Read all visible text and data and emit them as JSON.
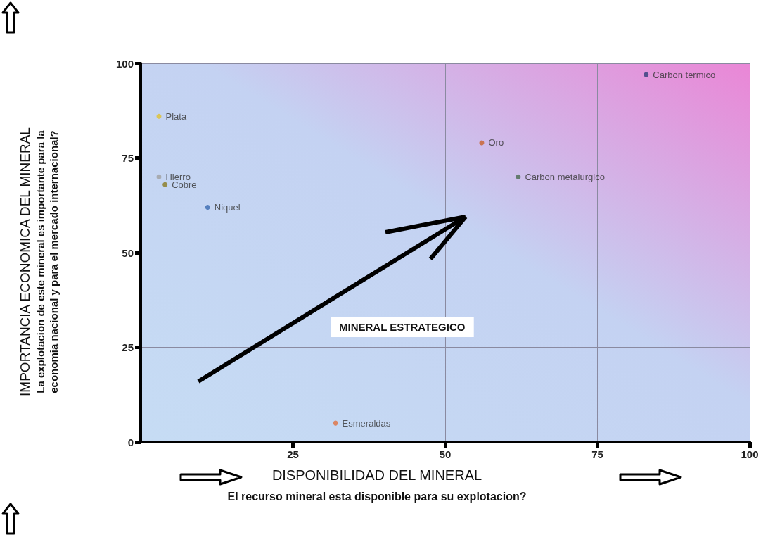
{
  "chart_data": {
    "type": "scatter",
    "xlabel": "DISPONIBILIDAD DEL MINERAL\nEl recurso mineral esta disponible para su explotacion?",
    "ylabel": "IMPORTANCIA ECONOMICA DEL MINERAL\nLa explotacion de este mineral es importante para la\neconomia nacional y para el mercado internacional?",
    "annotations": [
      "MINERAL ESTRATEGICO"
    ],
    "series": [
      {
        "name": "Carbon termico",
        "color": "#2f3f7a",
        "x": [
          83
        ],
        "values": [
          97
        ]
      },
      {
        "name": "Plata",
        "color": "#e0c030",
        "x": [
          3
        ],
        "values": [
          86
        ]
      },
      {
        "name": "Oro",
        "color": "#c8622a",
        "x": [
          56
        ],
        "values": [
          79
        ]
      },
      {
        "name": "Hierro",
        "color": "#a0a0a0",
        "x": [
          3
        ],
        "values": [
          70
        ]
      },
      {
        "name": "Cobre",
        "color": "#8a7a20",
        "x": [
          4
        ],
        "values": [
          68
        ]
      },
      {
        "name": "Carbon metalurgico",
        "color": "#4a6a50",
        "x": [
          62
        ],
        "values": [
          70
        ]
      },
      {
        "name": "Niquel",
        "color": "#3a6ab0",
        "x": [
          11
        ],
        "values": [
          62
        ]
      },
      {
        "name": "Esmeraldas",
        "color": "#e07040",
        "x": [
          32
        ],
        "values": [
          5
        ]
      }
    ],
    "xlim": [
      0,
      100
    ],
    "xticks": [
      25,
      50,
      75,
      100
    ],
    "ylim": [
      0,
      100
    ],
    "yticks": [
      0,
      25,
      50,
      75,
      100
    ],
    "grid": true,
    "marker": "circle",
    "legend": false
  }
}
